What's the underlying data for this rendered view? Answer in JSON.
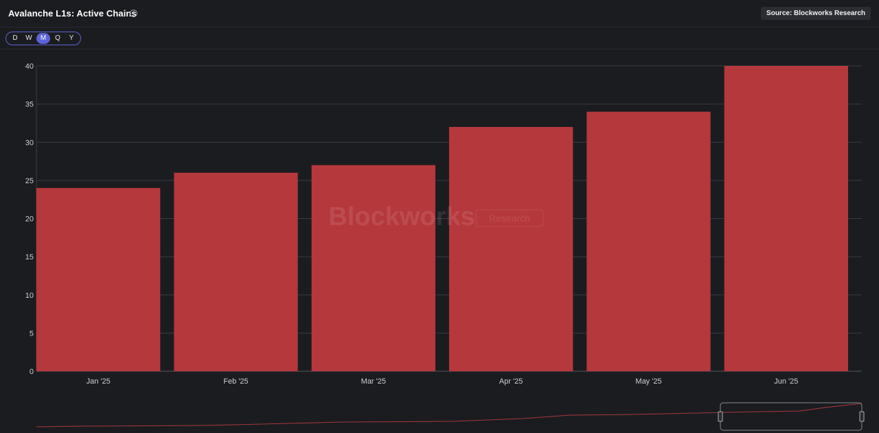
{
  "header": {
    "title": "Avalanche L1s: Active Chains",
    "info_icon": "info-circle-icon",
    "source": "Source: Blockworks Research"
  },
  "toolbar": {
    "periods": [
      "D",
      "W",
      "M",
      "Q",
      "Y"
    ],
    "active_period": "M"
  },
  "watermark": {
    "brand": "Blockworks",
    "tag": "Research"
  },
  "colors": {
    "bar": "#b5383c",
    "grid": "#3a3b40",
    "background": "#1b1c20",
    "accent": "#5b63d6"
  },
  "chart_data": {
    "type": "bar",
    "title": "Avalanche L1s: Active Chains",
    "categories": [
      "Jan '25",
      "Feb '25",
      "Mar '25",
      "Apr '25",
      "May '25",
      "Jun '25"
    ],
    "values": [
      24,
      26,
      27,
      32,
      34,
      40
    ],
    "ylim": [
      0,
      40
    ],
    "yticks": [
      0,
      5,
      10,
      15,
      20,
      25,
      30,
      35,
      40
    ],
    "grid": true,
    "xlabel": "",
    "ylabel": ""
  }
}
